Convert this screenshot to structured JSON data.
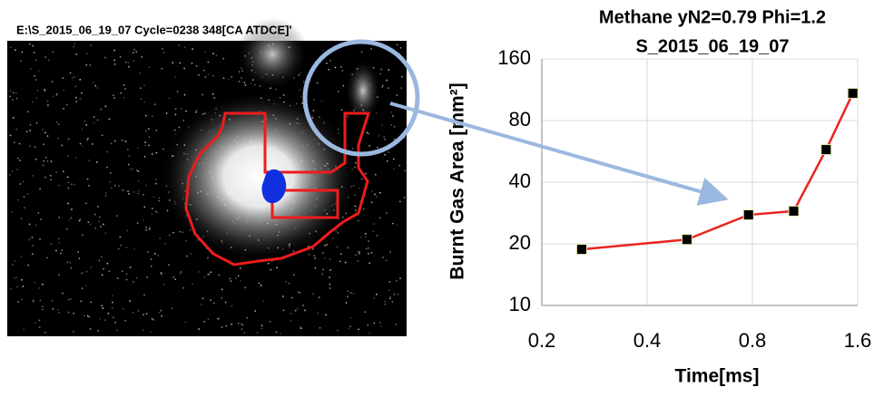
{
  "image": {
    "caption": "E:\\S_2015_06_19_07 Cycle=0238  348[CA ATDCE]'"
  },
  "chart_data": {
    "type": "line",
    "title": "Methane yN2=0.79 Phi=1.2",
    "subtitle": "S_2015_06_19_07",
    "x_label": "Time[ms]",
    "y_label": "Burnt Gas Area [mm²]",
    "x": [
      0.26,
      0.52,
      0.78,
      1.05,
      1.3,
      1.55
    ],
    "series": [
      {
        "name": "Burnt Gas Area",
        "color": "#e8251f",
        "marker_color": "#000000",
        "values": [
          18.8,
          21.0,
          27.7,
          28.9,
          57.7,
          108.7
        ]
      }
    ],
    "xlim": [
      0.2,
      1.6
    ],
    "xticks": [
      0.2,
      0.4,
      0.8,
      1.6
    ],
    "xscale": "log",
    "ylim": [
      10,
      160
    ],
    "yticks": [
      10,
      20,
      40,
      80,
      160
    ],
    "yscale": "log",
    "grid": true
  }
}
